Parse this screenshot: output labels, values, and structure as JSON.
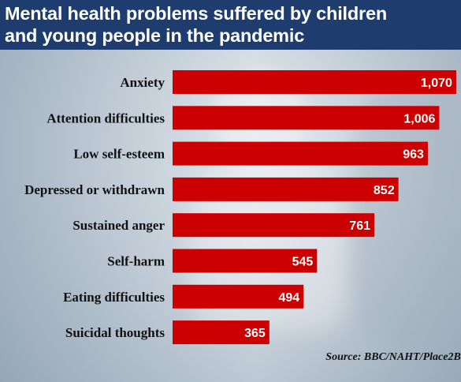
{
  "title_line1": "Mental health problems suffered by children",
  "title_line2": "and young people in the pandemic",
  "source": "Source: BBC/NAHT/Place2Be",
  "chart_data": {
    "type": "bar",
    "orientation": "horizontal",
    "categories": [
      "Anxiety",
      "Attention difficulties",
      "Low self-esteem",
      "Depressed or withdrawn",
      "Sustained anger",
      "Self-harm",
      "Eating difficulties",
      "Suicidal thoughts"
    ],
    "values": [
      1070,
      1006,
      963,
      852,
      761,
      545,
      494,
      365
    ],
    "value_labels": [
      "1,070",
      "1,006",
      "963",
      "852",
      "761",
      "545",
      "494",
      "365"
    ],
    "bar_color": "#cc0000",
    "grid": false
  }
}
